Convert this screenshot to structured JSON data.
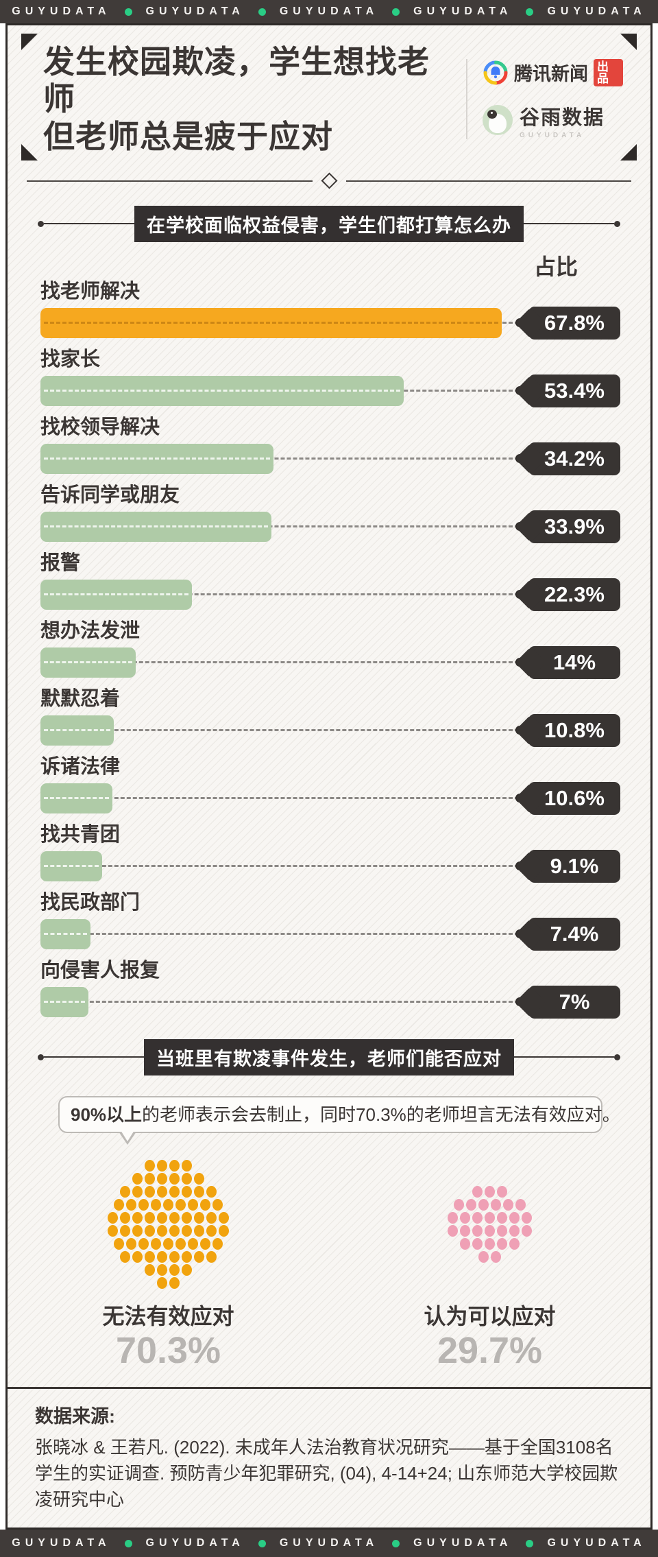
{
  "banner": {
    "brand": "GUYUDATA",
    "repeat": 5
  },
  "header": {
    "title_line1": "发生校园欺凌，学生想找老师",
    "title_line2": "但老师总是疲于应对",
    "publisher": {
      "name": "腾讯新闻",
      "badge": "出品"
    },
    "logo": {
      "name": "谷雨数据",
      "sub": "GUYUDATA"
    }
  },
  "chart_data": [
    {
      "type": "bar",
      "title": "在学校面临权益侵害，学生们都打算怎么办",
      "value_header": "占比",
      "orientation": "horizontal",
      "xlim": [
        0,
        100
      ],
      "categories": [
        "找老师解决",
        "找家长",
        "找校领导解决",
        "告诉同学或朋友",
        "报警",
        "想办法发泄",
        "默默忍着",
        "诉诸法律",
        "找共青团",
        "找民政部门",
        "向侵害人报复"
      ],
      "values": [
        67.8,
        53.4,
        34.2,
        33.9,
        22.3,
        14,
        10.8,
        10.6,
        9.1,
        7.4,
        7
      ],
      "value_labels": [
        "67.8%",
        "53.4%",
        "34.2%",
        "33.9%",
        "22.3%",
        "14%",
        "10.8%",
        "10.6%",
        "9.1%",
        "7.4%",
        "7%"
      ],
      "highlight_index": 0,
      "colors": {
        "highlight": "#f6a81f",
        "default": "#afcba7",
        "tag": "#383432"
      }
    },
    {
      "type": "pictogram-dots",
      "title": "当班里有欺凌事件发生，老师们能否应对",
      "callout_bold": "90%以上",
      "callout_rest": "的老师表示会去制止，同时70.3%的老师坦言无法有效应对。",
      "groups": [
        {
          "label": "无法有效应对",
          "value_label": "70.3%",
          "value": 70.3,
          "dots": 70,
          "color": "#f1a30e"
        },
        {
          "label": "认为可以应对",
          "value_label": "29.7%",
          "value": 29.7,
          "dots": 30,
          "color": "#efa0b5"
        }
      ]
    }
  ],
  "source": {
    "heading": "数据来源:",
    "text": "张晓冰 & 王若凡. (2022). 未成年人法治教育状况研究——基于全国3108名学生的实证调查. 预防青少年犯罪研究, (04), 4-14+24; 山东师范大学校园欺凌研究中心"
  }
}
